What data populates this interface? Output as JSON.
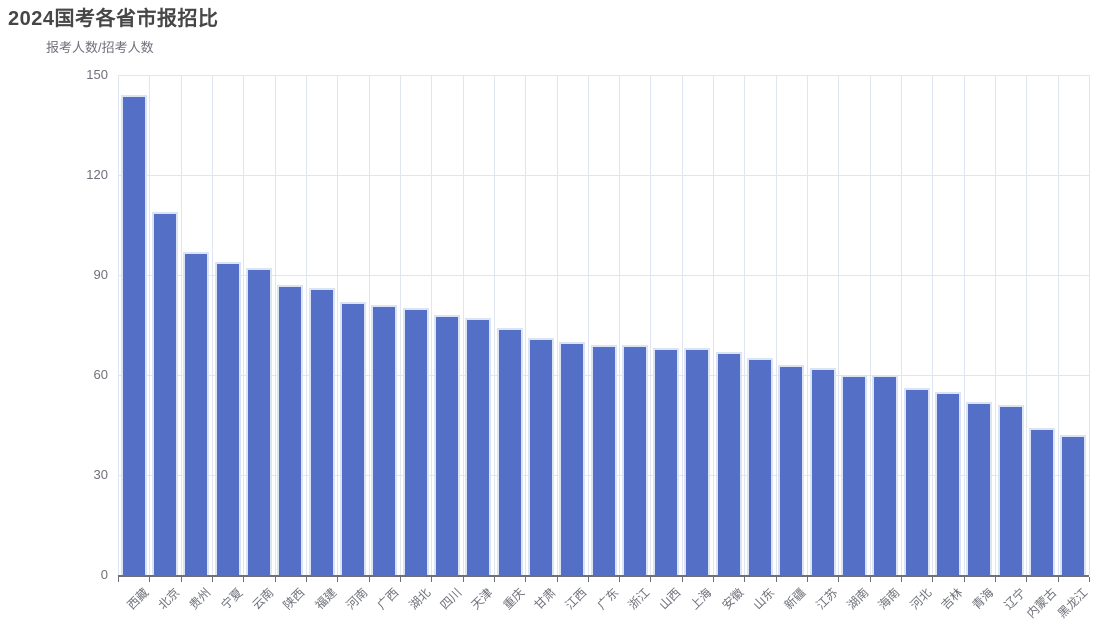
{
  "chart_data": {
    "type": "bar",
    "title": "2024国考各省市报招比",
    "ylabel": "报考人数/招考人数",
    "xlabel": "",
    "categories": [
      "西藏",
      "北京",
      "贵州",
      "宁夏",
      "云南",
      "陕西",
      "福建",
      "河南",
      "广西",
      "湖北",
      "四川",
      "天津",
      "重庆",
      "甘肃",
      "江西",
      "广东",
      "浙江",
      "山西",
      "上海",
      "安徽",
      "山东",
      "新疆",
      "江苏",
      "湖南",
      "海南",
      "河北",
      "吉林",
      "青海",
      "辽宁",
      "内蒙古",
      "黑龙江"
    ],
    "values": [
      144,
      109,
      97,
      94,
      92,
      87,
      86,
      82,
      81,
      80,
      78,
      77,
      74,
      71,
      70,
      69,
      69,
      68,
      68,
      67,
      65,
      63,
      62,
      60,
      60,
      56,
      55,
      52,
      51,
      44,
      42
    ],
    "ylim": [
      0,
      150
    ],
    "yticks": [
      0,
      30,
      60,
      90,
      120,
      150
    ],
    "grid": "on",
    "legend": "none",
    "x_label_rotation": 45,
    "colors": {
      "bar_fill": "#5470c6",
      "bar_border": "#dce3f5",
      "grid_line": "#e0e6f1",
      "axis_line": "#6e7079",
      "tick_label": "#6e7079",
      "title": "#464646",
      "background": "#ffffff"
    }
  }
}
